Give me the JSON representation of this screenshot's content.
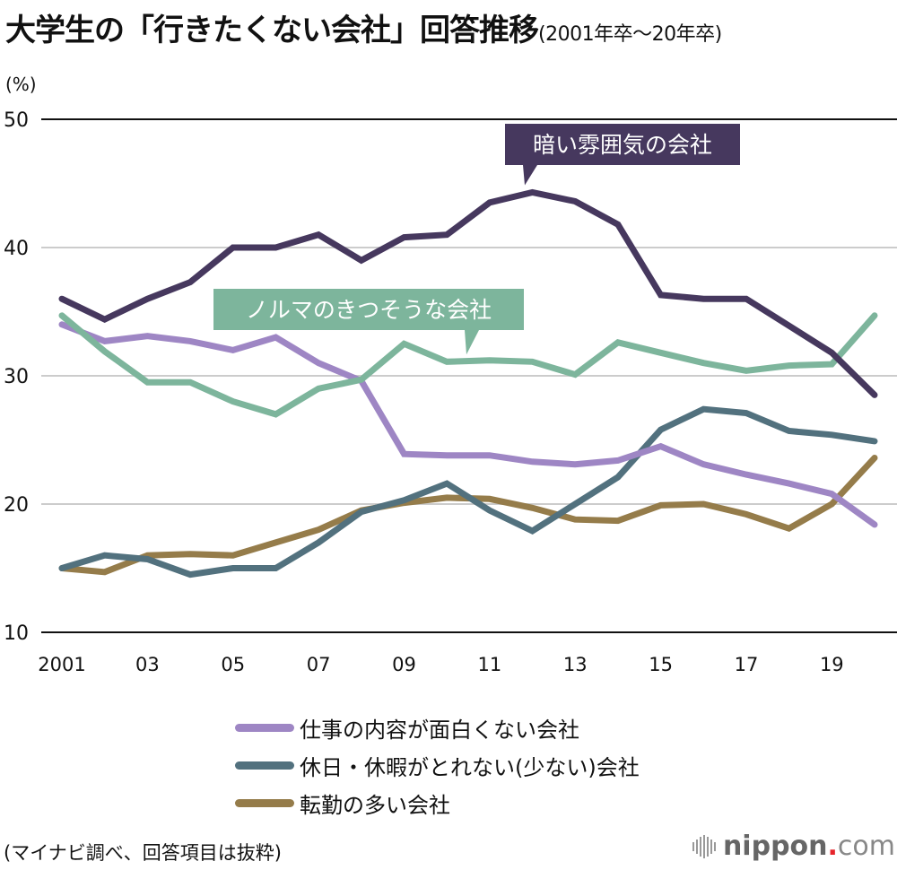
{
  "header": {
    "title": "大学生の「行きたくない会社」回答推移",
    "subtitle": "(2001年卒〜20年卒)",
    "unit": "(%)"
  },
  "footer": {
    "source": "(マイナビ調べ、回答項目は抜粋)",
    "logo_brand": "nippon",
    "logo_dot": ".",
    "logo_tld": "com"
  },
  "chart_data": {
    "type": "line",
    "title": "大学生の「行きたくない会社」回答推移(2001年卒〜20年卒)",
    "xlabel": "",
    "ylabel": "(%)",
    "ylim": [
      10,
      50
    ],
    "yticks": [
      10,
      20,
      30,
      40,
      50
    ],
    "grid": true,
    "x": [
      2001,
      2002,
      2003,
      2004,
      2005,
      2006,
      2007,
      2008,
      2009,
      2010,
      2011,
      2012,
      2013,
      2014,
      2015,
      2016,
      2017,
      2018,
      2019,
      2020
    ],
    "xtick_values": [
      2001,
      2003,
      2005,
      2007,
      2009,
      2011,
      2013,
      2015,
      2017,
      2019
    ],
    "xtick_labels": [
      "2001",
      "03",
      "05",
      "07",
      "09",
      "11",
      "13",
      "15",
      "17",
      "19"
    ],
    "legend_placement": "bottom",
    "series": [
      {
        "name": "暗い雰囲気の会社",
        "color": "#46385e",
        "label_style": "callout",
        "values": [
          36.0,
          34.4,
          36.0,
          37.3,
          40.0,
          40.0,
          41.0,
          39.0,
          40.8,
          41.0,
          43.5,
          44.3,
          43.6,
          41.8,
          36.3,
          36.0,
          36.0,
          33.9,
          31.8,
          28.5
        ]
      },
      {
        "name": "ノルマのきつそうな会社",
        "color": "#7db59c",
        "label_style": "callout",
        "values": [
          34.7,
          31.9,
          29.5,
          29.5,
          28.0,
          27.0,
          29.0,
          29.7,
          32.5,
          31.1,
          31.2,
          31.1,
          30.1,
          32.6,
          31.8,
          31.0,
          30.4,
          30.8,
          30.9,
          34.7
        ]
      },
      {
        "name": "仕事の内容が面白くない会社",
        "color": "#9e86c4",
        "label_style": "legend",
        "values": [
          34.0,
          32.7,
          33.1,
          32.7,
          32.0,
          33.0,
          31.0,
          29.6,
          23.9,
          23.8,
          23.8,
          23.3,
          23.1,
          23.4,
          24.5,
          23.1,
          22.3,
          21.6,
          20.8,
          18.4
        ]
      },
      {
        "name": "休日・休暇がとれない(少ない)会社",
        "color": "#52717e",
        "label_style": "legend",
        "values": [
          15.0,
          16.0,
          15.7,
          14.5,
          15.0,
          15.0,
          17.0,
          19.4,
          20.3,
          21.6,
          19.5,
          17.9,
          20.0,
          22.1,
          25.8,
          27.4,
          27.1,
          25.7,
          25.4,
          24.9
        ]
      },
      {
        "name": "転勤の多い会社",
        "color": "#957c4a",
        "label_style": "legend",
        "values": [
          15.0,
          14.7,
          16.0,
          16.1,
          16.0,
          17.0,
          18.0,
          19.5,
          20.1,
          20.5,
          20.4,
          19.7,
          18.8,
          18.7,
          19.9,
          20.0,
          19.2,
          18.1,
          20.0,
          23.6
        ]
      }
    ],
    "callouts": [
      {
        "series_index": 0,
        "text": "暗い雰囲気の会社",
        "anchor_x": 2012
      },
      {
        "series_index": 1,
        "text": "ノルマのきつそうな会社",
        "anchor_x": 2010
      }
    ]
  }
}
